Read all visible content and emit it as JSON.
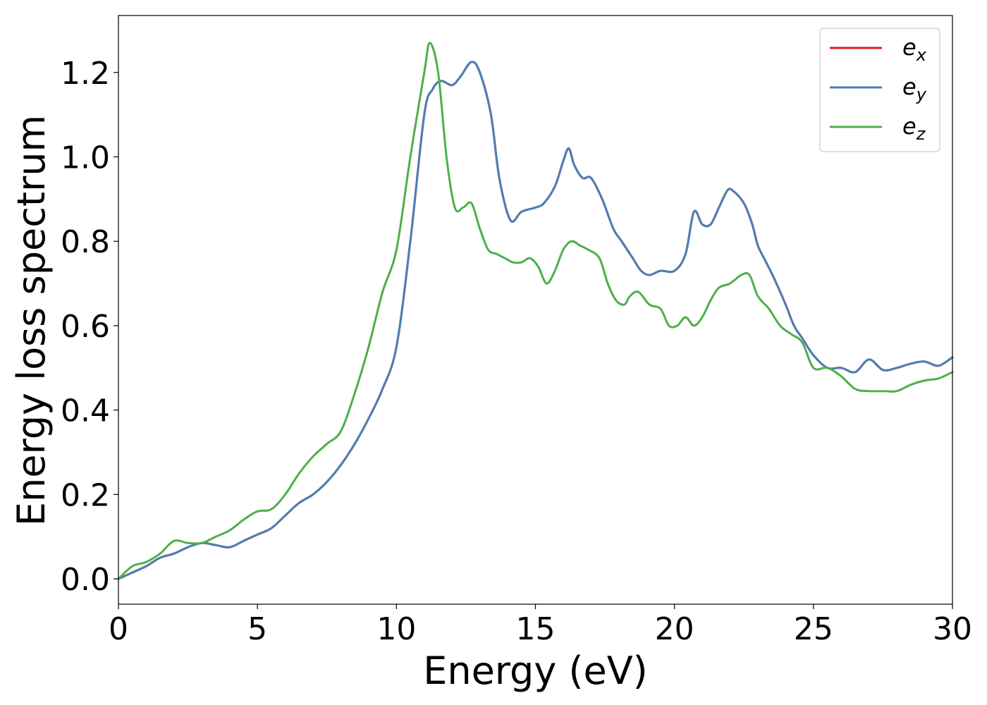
{
  "chart_data": {
    "type": "line",
    "title": "",
    "xlabel": "Energy (eV)",
    "ylabel": "Energy loss spectrum",
    "xlim": [
      0,
      30
    ],
    "ylim": [
      -0.06,
      1.335
    ],
    "xticks": [
      0,
      5,
      10,
      15,
      20,
      25,
      30
    ],
    "xtick_labels": [
      "0",
      "5",
      "10",
      "15",
      "20",
      "25",
      "30"
    ],
    "yticks": [
      0.0,
      0.2,
      0.4,
      0.6,
      0.8,
      1.0,
      1.2
    ],
    "ytick_labels": [
      "0.0",
      "0.2",
      "0.4",
      "0.6",
      "0.8",
      "1.0",
      "1.2"
    ],
    "grid": false,
    "legend_position": "top-right",
    "series": [
      {
        "name": "e_x",
        "label_base": "e",
        "label_sub": "x",
        "color": "#e41a1c",
        "x": [
          0,
          0.5,
          1,
          1.5,
          2,
          2.5,
          3,
          3.5,
          4,
          4.5,
          5,
          5.5,
          6,
          6.5,
          7,
          7.5,
          8,
          8.5,
          9,
          9.5,
          10,
          10.5,
          11,
          11.3,
          11.6,
          12,
          12.3,
          12.7,
          13,
          13.4,
          13.7,
          14.1,
          14.5,
          15,
          15.3,
          15.7,
          16,
          16.2,
          16.4,
          16.7,
          17,
          17.4,
          17.8,
          18.1,
          18.5,
          18.8,
          19.1,
          19.5,
          20,
          20.4,
          20.7,
          21,
          21.3,
          21.6,
          21.9,
          22.1,
          22.5,
          22.8,
          23,
          23.3,
          23.6,
          24,
          24.3,
          24.6,
          25,
          25.5,
          26,
          26.5,
          27,
          27.5,
          28,
          28.5,
          29,
          29.5,
          30
        ],
        "values": [
          0.0,
          0.015,
          0.03,
          0.05,
          0.06,
          0.075,
          0.085,
          0.08,
          0.075,
          0.09,
          0.105,
          0.12,
          0.15,
          0.18,
          0.2,
          0.23,
          0.27,
          0.32,
          0.38,
          0.45,
          0.55,
          0.8,
          1.1,
          1.16,
          1.18,
          1.17,
          1.19,
          1.225,
          1.2,
          1.1,
          0.95,
          0.85,
          0.87,
          0.88,
          0.89,
          0.93,
          0.99,
          1.02,
          0.98,
          0.95,
          0.95,
          0.9,
          0.83,
          0.8,
          0.76,
          0.73,
          0.72,
          0.73,
          0.73,
          0.77,
          0.87,
          0.84,
          0.84,
          0.88,
          0.92,
          0.92,
          0.89,
          0.84,
          0.79,
          0.75,
          0.71,
          0.65,
          0.6,
          0.57,
          0.53,
          0.5,
          0.5,
          0.49,
          0.52,
          0.495,
          0.5,
          0.51,
          0.515,
          0.505,
          0.525
        ]
      },
      {
        "name": "e_y",
        "label_base": "e",
        "label_sub": "y",
        "color": "#4a7fb5",
        "x": [
          0,
          0.5,
          1,
          1.5,
          2,
          2.5,
          3,
          3.5,
          4,
          4.5,
          5,
          5.5,
          6,
          6.5,
          7,
          7.5,
          8,
          8.5,
          9,
          9.5,
          10,
          10.5,
          11,
          11.3,
          11.6,
          12,
          12.3,
          12.7,
          13,
          13.4,
          13.7,
          14.1,
          14.5,
          15,
          15.3,
          15.7,
          16,
          16.2,
          16.4,
          16.7,
          17,
          17.4,
          17.8,
          18.1,
          18.5,
          18.8,
          19.1,
          19.5,
          20,
          20.4,
          20.7,
          21,
          21.3,
          21.6,
          21.9,
          22.1,
          22.5,
          22.8,
          23,
          23.3,
          23.6,
          24,
          24.3,
          24.6,
          25,
          25.5,
          26,
          26.5,
          27,
          27.5,
          28,
          28.5,
          29,
          29.5,
          30
        ],
        "values": [
          0.0,
          0.015,
          0.03,
          0.05,
          0.06,
          0.075,
          0.085,
          0.08,
          0.075,
          0.09,
          0.105,
          0.12,
          0.15,
          0.18,
          0.2,
          0.23,
          0.27,
          0.32,
          0.38,
          0.45,
          0.55,
          0.8,
          1.1,
          1.16,
          1.18,
          1.17,
          1.19,
          1.225,
          1.2,
          1.1,
          0.95,
          0.85,
          0.87,
          0.88,
          0.89,
          0.93,
          0.99,
          1.02,
          0.98,
          0.95,
          0.95,
          0.9,
          0.83,
          0.8,
          0.76,
          0.73,
          0.72,
          0.73,
          0.73,
          0.77,
          0.87,
          0.84,
          0.84,
          0.88,
          0.92,
          0.92,
          0.89,
          0.84,
          0.79,
          0.75,
          0.71,
          0.65,
          0.6,
          0.57,
          0.53,
          0.5,
          0.5,
          0.49,
          0.52,
          0.495,
          0.5,
          0.51,
          0.515,
          0.505,
          0.525
        ]
      },
      {
        "name": "e_z",
        "label_base": "e",
        "label_sub": "z",
        "color": "#4daf4a",
        "x": [
          0,
          0.5,
          1,
          1.5,
          2,
          2.5,
          3,
          3.5,
          4,
          4.5,
          5,
          5.5,
          6,
          6.5,
          7,
          7.5,
          8,
          8.5,
          9,
          9.5,
          10,
          10.5,
          11,
          11.2,
          11.5,
          11.8,
          12.1,
          12.4,
          12.7,
          13,
          13.3,
          13.6,
          13.9,
          14.2,
          14.5,
          14.8,
          15.1,
          15.4,
          15.7,
          16,
          16.3,
          16.6,
          16.9,
          17.3,
          17.6,
          17.9,
          18.2,
          18.4,
          18.7,
          19.1,
          19.5,
          19.8,
          20.1,
          20.4,
          20.7,
          21,
          21.3,
          21.6,
          22,
          22.4,
          22.7,
          23,
          23.4,
          23.8,
          24.2,
          24.6,
          25,
          25.5,
          26,
          26.5,
          27,
          27.5,
          28,
          28.5,
          29,
          29.5,
          30
        ],
        "values": [
          0.0,
          0.03,
          0.04,
          0.06,
          0.09,
          0.085,
          0.085,
          0.1,
          0.115,
          0.14,
          0.16,
          0.165,
          0.2,
          0.25,
          0.29,
          0.32,
          0.35,
          0.44,
          0.55,
          0.68,
          0.78,
          1.0,
          1.2,
          1.27,
          1.2,
          1.0,
          0.88,
          0.88,
          0.89,
          0.83,
          0.78,
          0.77,
          0.76,
          0.75,
          0.75,
          0.76,
          0.74,
          0.7,
          0.73,
          0.78,
          0.8,
          0.79,
          0.78,
          0.76,
          0.7,
          0.66,
          0.65,
          0.67,
          0.68,
          0.65,
          0.64,
          0.6,
          0.6,
          0.62,
          0.6,
          0.62,
          0.66,
          0.69,
          0.7,
          0.72,
          0.72,
          0.67,
          0.64,
          0.6,
          0.58,
          0.56,
          0.5,
          0.5,
          0.48,
          0.45,
          0.445,
          0.445,
          0.445,
          0.46,
          0.47,
          0.475,
          0.49
        ]
      }
    ]
  }
}
